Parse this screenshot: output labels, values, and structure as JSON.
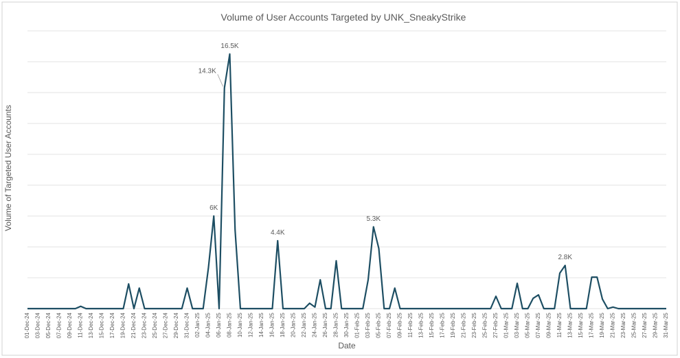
{
  "chart_data": {
    "type": "line",
    "title": "Volume of User Accounts Targeted by UNK_SneakyStrike",
    "x_label": "Date",
    "y_label": "Volume of Targeted User Accounts",
    "categories": [
      "01-Dec-24",
      null,
      "03-Dec-24",
      null,
      "05-Dec-24",
      null,
      "07-Dec-24",
      null,
      "09-Dec-24",
      null,
      "11-Dec-24",
      null,
      "13-Dec-24",
      null,
      "15-Dec-24",
      null,
      "17-Dec-24",
      null,
      "19-Dec-24",
      null,
      "21-Dec-24",
      null,
      "23-Dec-24",
      null,
      "25-Dec-24",
      null,
      "27-Dec-24",
      null,
      "29-Dec-24",
      null,
      "31-Dec-24",
      null,
      "02-Jan-25",
      null,
      "04-Jan-25",
      null,
      "06-Jan-25",
      null,
      "08-Jan-25",
      null,
      "10-Jan-25",
      null,
      "12-Jan-25",
      null,
      "14-Jan-25",
      null,
      "16-Jan-25",
      null,
      "18-Jan-25",
      null,
      "20-Jan-25",
      null,
      "22-Jan-25",
      null,
      "24-Jan-25",
      null,
      "26-Jan-25",
      null,
      "28-Jan-25",
      null,
      "30-Jan-25",
      null,
      "01-Feb-25",
      null,
      "03-Feb-25",
      null,
      "05-Feb-25",
      null,
      "07-Feb-25",
      null,
      "09-Feb-25",
      null,
      "11-Feb-25",
      null,
      "13-Feb-25",
      null,
      "15-Feb-25",
      null,
      "17-Feb-25",
      null,
      "19-Feb-25",
      null,
      "21-Feb-25",
      null,
      "23-Feb-25",
      null,
      "25-Feb-25",
      null,
      "27-Feb-25",
      null,
      "01-Mar-25",
      null,
      "03-Mar-25",
      null,
      "05-Mar-25",
      null,
      "07-Mar-25",
      null,
      "09-Mar-25",
      null,
      "11-Mar-25",
      null,
      "13-Mar-25",
      null,
      "15-Mar-25",
      null,
      "17-Mar-25",
      null,
      "19-Mar-25",
      null,
      "21-Mar-25",
      null,
      "23-Mar-25",
      null,
      "25-Mar-25",
      null,
      "27-Mar-25",
      null,
      "29-Mar-25",
      null,
      "31-Mar-25"
    ],
    "values": [
      0,
      0,
      0,
      0,
      0,
      0,
      0,
      0,
      0,
      0,
      150,
      0,
      0,
      0,
      0,
      0,
      0,
      0,
      0,
      1600,
      0,
      1330,
      0,
      0,
      0,
      0,
      0,
      0,
      0,
      0,
      1330,
      0,
      0,
      0,
      2670,
      6000,
      0,
      14300,
      16500,
      5100,
      0,
      0,
      0,
      0,
      0,
      0,
      0,
      4400,
      0,
      0,
      0,
      0,
      0,
      350,
      100,
      1870,
      0,
      0,
      3100,
      0,
      0,
      0,
      0,
      0,
      1870,
      5300,
      3900,
      0,
      0,
      1330,
      0,
      0,
      0,
      0,
      0,
      0,
      0,
      0,
      0,
      0,
      0,
      0,
      0,
      0,
      0,
      0,
      0,
      0,
      800,
      0,
      0,
      0,
      1640,
      0,
      0,
      670,
      890,
      0,
      0,
      0,
      2300,
      2800,
      0,
      0,
      0,
      0,
      2040,
      2040,
      620,
      0,
      100,
      0,
      0,
      0,
      0,
      0,
      0,
      0,
      0,
      0,
      0
    ],
    "value_labels": [
      null,
      null,
      null,
      null,
      null,
      null,
      null,
      null,
      null,
      null,
      null,
      null,
      null,
      null,
      null,
      null,
      null,
      null,
      null,
      null,
      null,
      null,
      null,
      null,
      null,
      null,
      null,
      null,
      null,
      null,
      null,
      null,
      null,
      null,
      null,
      "6K",
      null,
      "14.3K",
      "16.5K",
      null,
      null,
      null,
      null,
      null,
      null,
      null,
      null,
      "4.4K",
      null,
      null,
      null,
      null,
      null,
      null,
      null,
      null,
      null,
      null,
      null,
      null,
      null,
      null,
      null,
      null,
      null,
      "5.3K",
      null,
      null,
      null,
      null,
      null,
      null,
      null,
      null,
      null,
      null,
      null,
      null,
      null,
      null,
      null,
      null,
      null,
      null,
      null,
      null,
      null,
      null,
      null,
      null,
      null,
      null,
      null,
      null,
      null,
      null,
      null,
      null,
      null,
      null,
      null,
      "2.8K",
      null,
      null,
      null,
      null,
      null,
      null,
      null,
      null,
      null,
      null,
      null,
      null,
      null,
      null,
      null,
      null,
      null,
      null,
      null
    ],
    "color": "#1d4e63",
    "ylim": [
      0,
      18000
    ],
    "yticks": [
      0,
      2000,
      4000,
      6000,
      8000,
      10000,
      12000,
      14000,
      16000,
      18000
    ],
    "grid": true
  }
}
